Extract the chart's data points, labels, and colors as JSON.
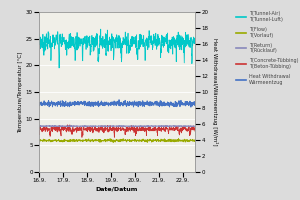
{
  "xlabel": "Date/Datum",
  "ylabel_left": "Temperature/Temperatur [°C]",
  "ylabel_right": "Heat Withdrawal/Wärmeentzug [W/m²]",
  "x_ticks": [
    "16.9.",
    "17.9.",
    "18.9.",
    "19.9.",
    "20.9.",
    "21.9.",
    "22.9."
  ],
  "ylim_left": [
    0,
    30
  ],
  "ylim_right": [
    0,
    20
  ],
  "yticks_left": [
    0,
    5,
    10,
    15,
    20,
    25,
    30
  ],
  "yticks_right": [
    0,
    2,
    4,
    6,
    8,
    10,
    12,
    14,
    16,
    18,
    20
  ],
  "bg_color": "#DCDCDC",
  "plot_bg_color": "#F0EFE8",
  "series": {
    "tunnel_air_mean": 24.5,
    "tunnel_air_std": 0.8,
    "flow_mean": 5.9,
    "flow_std": 0.12,
    "return_mean": 8.6,
    "return_std": 0.04,
    "concrete_mean": 8.05,
    "concrete_std": 0.25,
    "heat_mean": 12.8,
    "heat_std": 0.25
  },
  "colors": {
    "tunnel_air": "#00C8C8",
    "flow": "#99AA00",
    "return": "#8888BB",
    "concrete": "#CC3333",
    "heat": "#4472C4"
  }
}
